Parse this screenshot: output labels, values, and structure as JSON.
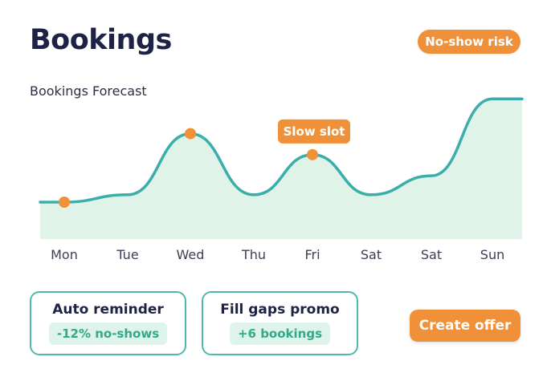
{
  "header": {
    "title": "Bookings",
    "risk_badge": "No-show risk"
  },
  "chart_data": {
    "type": "area",
    "title": "Bookings Forecast",
    "categories": [
      "Mon",
      "Tue",
      "Wed",
      "Thu",
      "Fri",
      "Sat",
      "Sat",
      "Sun"
    ],
    "values": [
      35,
      42,
      100,
      42,
      80,
      42,
      60,
      133
    ],
    "ylim": [
      0,
      140
    ],
    "highlighted_points": [
      0,
      2,
      4
    ],
    "annotation": {
      "point": 4,
      "label": "Slow slot"
    },
    "line_color": "#3aaea8",
    "fill_color": "#dff3e8",
    "marker_color": "#f0913a"
  },
  "cards": [
    {
      "title": "Auto reminder",
      "value": "-12% no-shows"
    },
    {
      "title": "Fill gaps promo",
      "value": "+6 bookings"
    }
  ],
  "actions": {
    "create_offer": "Create offer"
  }
}
